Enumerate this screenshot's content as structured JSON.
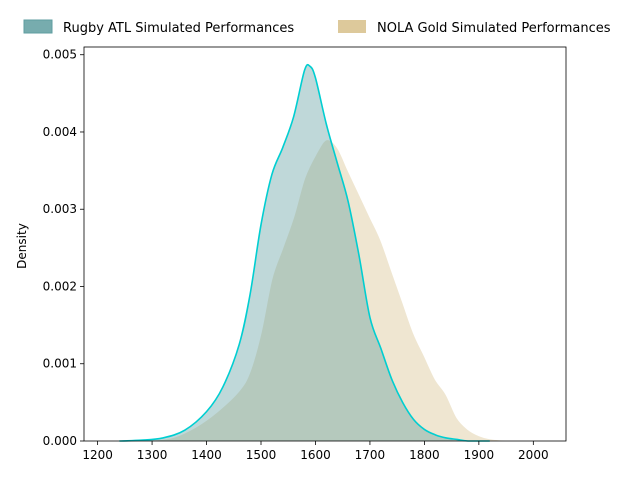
{
  "chart_data": {
    "type": "area",
    "title": "",
    "xlabel": "",
    "ylabel": "Density",
    "xlim": [
      1175,
      2060
    ],
    "ylim": [
      0,
      0.0051
    ],
    "x_ticks": [
      1200,
      1300,
      1400,
      1500,
      1600,
      1700,
      1800,
      1900,
      2000
    ],
    "x_tick_labels": [
      "1200",
      "1300",
      "1400",
      "1500",
      "1600",
      "1700",
      "1800",
      "1900",
      "2000"
    ],
    "y_ticks": [
      0,
      0.001,
      0.002,
      0.003,
      0.004,
      0.005
    ],
    "y_tick_labels": [
      "0.000",
      "0.001",
      "0.002",
      "0.003",
      "0.004",
      "0.005"
    ],
    "grid": false,
    "legend_placement": "top, outside plot",
    "series": [
      {
        "name": "Rugby ATL Simulated Performances",
        "fill_color": "#5f9ea0",
        "line_color": "#00ced1",
        "x": [
          1240,
          1280,
          1320,
          1360,
          1400,
          1430,
          1460,
          1480,
          1500,
          1520,
          1540,
          1560,
          1580,
          1590,
          1600,
          1620,
          1640,
          1660,
          1680,
          1700,
          1720,
          1740,
          1760,
          1780,
          1800,
          1820,
          1840,
          1860,
          1880,
          1920
        ],
        "y": [
          0.0,
          1e-05,
          4e-05,
          0.00014,
          0.00038,
          0.0007,
          0.00125,
          0.0019,
          0.0028,
          0.00345,
          0.0038,
          0.0042,
          0.0048,
          0.00485,
          0.0047,
          0.0041,
          0.0036,
          0.0031,
          0.0024,
          0.0016,
          0.0012,
          0.0008,
          0.0005,
          0.00028,
          0.00015,
          8e-05,
          4e-05,
          2e-05,
          0.0,
          0.0
        ]
      },
      {
        "name": "NOLA Gold Simulated Performances",
        "fill_color": "#d2b77a",
        "line_color": "#ffffff",
        "x": [
          1260,
          1300,
          1340,
          1380,
          1420,
          1460,
          1480,
          1500,
          1520,
          1540,
          1560,
          1580,
          1600,
          1620,
          1640,
          1660,
          1680,
          1700,
          1720,
          1740,
          1760,
          1780,
          1800,
          1820,
          1840,
          1860,
          1880,
          1900,
          1920,
          1960
        ],
        "y": [
          0.0,
          1e-05,
          5e-05,
          0.00018,
          0.00038,
          0.00065,
          0.0009,
          0.0014,
          0.0021,
          0.0025,
          0.0029,
          0.0034,
          0.0037,
          0.0039,
          0.0038,
          0.0035,
          0.0032,
          0.0029,
          0.0026,
          0.0022,
          0.0018,
          0.0014,
          0.0011,
          0.0008,
          0.0006,
          0.0003,
          0.00015,
          7e-05,
          3e-05,
          0.0
        ]
      }
    ]
  }
}
